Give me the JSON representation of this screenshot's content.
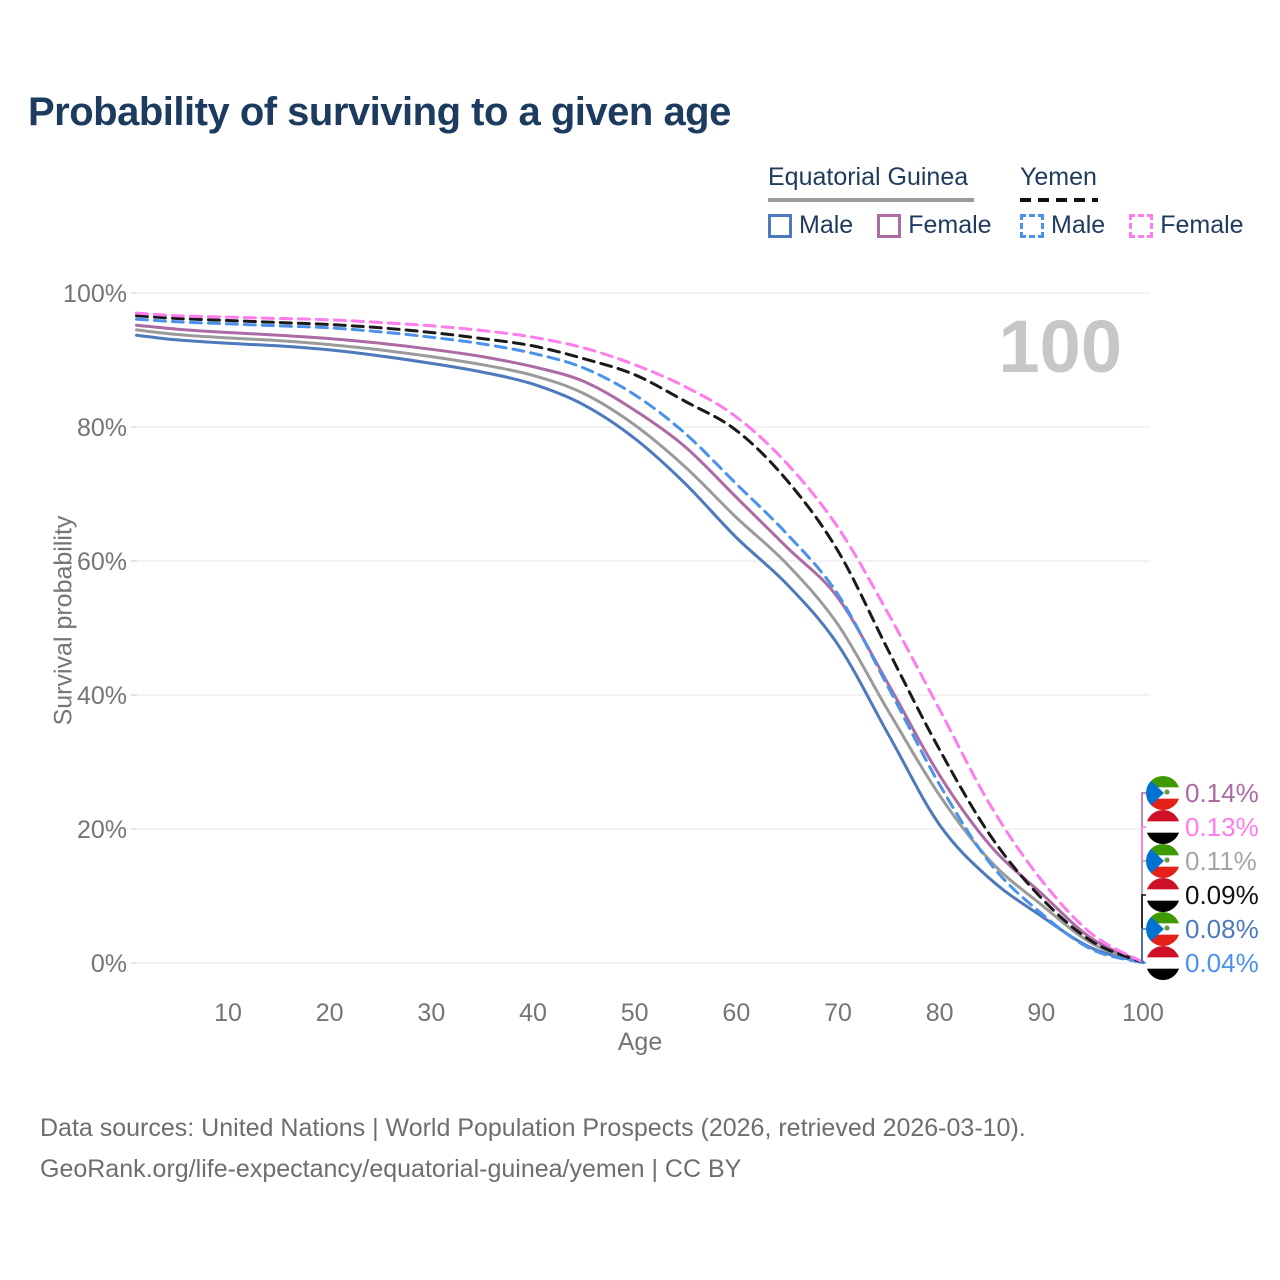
{
  "header": {
    "title": "Probability of surviving to a given age"
  },
  "legend": {
    "groups": [
      {
        "country": "Equatorial Guinea",
        "line_style": "solid",
        "underline_color": "#9b9b9b",
        "items": [
          {
            "label": "Male",
            "color": "#4d79bd"
          },
          {
            "label": "Female",
            "color": "#ad6aa3"
          }
        ]
      },
      {
        "country": "Yemen",
        "line_style": "dashed",
        "underline_color": "#1a1a1a",
        "items": [
          {
            "label": "Male",
            "color": "#4b93ea"
          },
          {
            "label": "Female",
            "color": "#ff7cec"
          }
        ]
      }
    ]
  },
  "chart_data": {
    "type": "line",
    "title": "Probability of surviving to a given age",
    "xlabel": "Age",
    "ylabel": "Survival probability",
    "watermark": "100",
    "xlim": [
      1,
      100
    ],
    "ylim": [
      0,
      100
    ],
    "grid": "horizontal",
    "x_ticks": [
      10,
      20,
      30,
      40,
      50,
      60,
      70,
      80,
      90,
      100
    ],
    "y_ticks": [
      {
        "value": 0,
        "label": "0%"
      },
      {
        "value": 20,
        "label": "20%"
      },
      {
        "value": 40,
        "label": "40%"
      },
      {
        "value": 60,
        "label": "60%"
      },
      {
        "value": 80,
        "label": "80%"
      },
      {
        "value": 100,
        "label": "100%"
      }
    ],
    "x": [
      1,
      5,
      10,
      15,
      20,
      25,
      30,
      35,
      40,
      45,
      50,
      55,
      60,
      65,
      70,
      75,
      80,
      85,
      90,
      95,
      100
    ],
    "series": [
      {
        "id": "eqg-male",
        "name": "Equatorial Guinea Male",
        "color": "#4d79bd",
        "dash": false,
        "values": [
          93.7,
          93.0,
          92.5,
          92.1,
          91.5,
          90.6,
          89.5,
          88.2,
          86.4,
          83.3,
          78.3,
          71.5,
          63.5,
          56.5,
          47.5,
          34.0,
          20.6,
          12.5,
          7.0,
          2.2,
          0.08
        ]
      },
      {
        "id": "eqg-total",
        "name": "Equatorial Guinea Both sexes",
        "color": "#9b9b9b",
        "dash": false,
        "values": [
          94.5,
          93.8,
          93.3,
          92.9,
          92.3,
          91.5,
          90.5,
          89.3,
          87.7,
          85.0,
          80.3,
          74.0,
          66.5,
          59.5,
          50.5,
          37.5,
          25.0,
          15.2,
          8.7,
          2.9,
          0.11
        ]
      },
      {
        "id": "eqg-female",
        "name": "Equatorial Guinea Female",
        "color": "#ad6aa3",
        "dash": false,
        "values": [
          95.2,
          94.6,
          94.1,
          93.7,
          93.2,
          92.5,
          91.6,
          90.5,
          89.0,
          86.8,
          82.5,
          77.0,
          69.5,
          62.0,
          54.5,
          41.5,
          28.0,
          17.5,
          10.4,
          3.6,
          0.14
        ]
      },
      {
        "id": "yem-male",
        "name": "Yemen Male",
        "color": "#4b93ea",
        "dash": true,
        "values": [
          96.1,
          95.7,
          95.4,
          95.1,
          94.8,
          94.2,
          93.4,
          92.4,
          91.0,
          88.8,
          84.8,
          79.0,
          71.5,
          64.0,
          55.0,
          41.0,
          26.6,
          14.8,
          7.4,
          2.0,
          0.04
        ]
      },
      {
        "id": "yem-total",
        "name": "Yemen Both sexes",
        "color": "#1a1a1a",
        "dash": true,
        "values": [
          96.6,
          96.2,
          95.9,
          95.6,
          95.3,
          94.8,
          94.1,
          93.2,
          92.1,
          90.2,
          87.8,
          83.8,
          79.5,
          72.0,
          61.5,
          46.5,
          31.8,
          19.0,
          9.7,
          3.2,
          0.09
        ]
      },
      {
        "id": "yem-female",
        "name": "Yemen Female",
        "color": "#ff7cec",
        "dash": true,
        "values": [
          97.0,
          96.6,
          96.4,
          96.2,
          96.0,
          95.6,
          95.1,
          94.4,
          93.4,
          91.8,
          89.3,
          86.0,
          81.5,
          74.5,
          65.0,
          52.0,
          37.8,
          23.5,
          12.4,
          4.3,
          0.13
        ]
      }
    ],
    "end_labels": [
      {
        "series": "eqg-female",
        "value": "0.14%",
        "flag": "equatorial-guinea",
        "color": "#ad6aa3"
      },
      {
        "series": "yem-female",
        "value": "0.13%",
        "flag": "yemen",
        "color": "#ff7cec"
      },
      {
        "series": "eqg-total",
        "value": "0.11%",
        "flag": "equatorial-guinea",
        "color": "#a5a5a5"
      },
      {
        "series": "yem-total",
        "value": "0.09%",
        "flag": "yemen",
        "color": "#111111"
      },
      {
        "series": "eqg-male",
        "value": "0.08%",
        "flag": "equatorial-guinea",
        "color": "#4d79bd"
      },
      {
        "series": "yem-male",
        "value": "0.04%",
        "flag": "yemen",
        "color": "#4b93ea"
      }
    ],
    "flag_colors": {
      "equatorial-guinea": {
        "stripes": [
          "#3e9a00",
          "#ffffff",
          "#e32118"
        ],
        "triangle": "#0073ce"
      },
      "yemen": {
        "stripes": [
          "#ce1126",
          "#ffffff",
          "#000000"
        ]
      }
    }
  },
  "footer": {
    "line1": "Data sources: United Nations | World Population Prospects (2026, retrieved 2026-03-10).",
    "line2": "GeoRank.org/life-expectancy/equatorial-guinea/yemen | CC BY"
  }
}
